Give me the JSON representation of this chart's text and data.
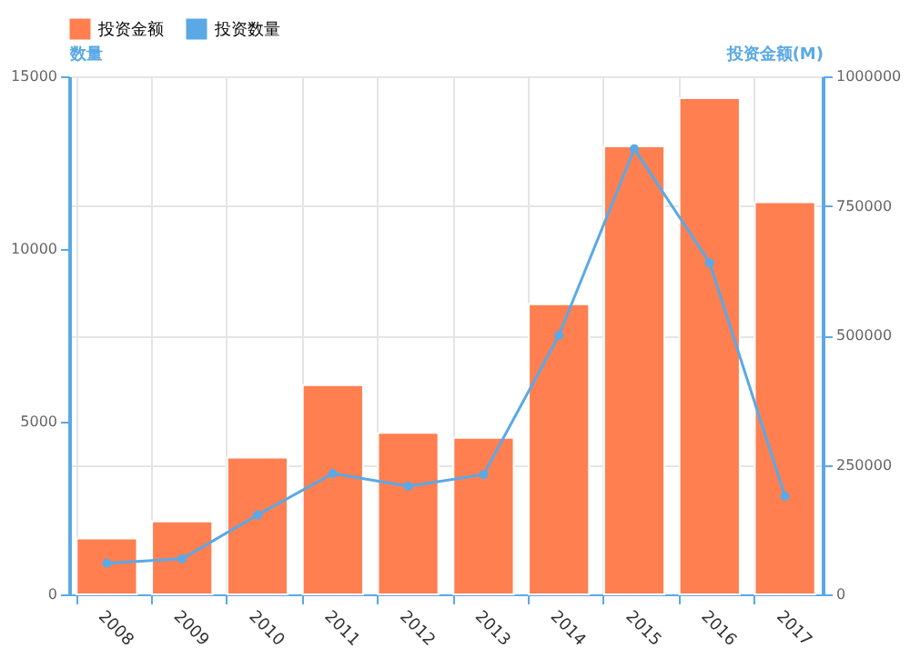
{
  "chart_data": {
    "type": "bar",
    "categories": [
      "2008",
      "2009",
      "2010",
      "2011",
      "2012",
      "2013",
      "2014",
      "2015",
      "2016",
      "2017"
    ],
    "series": [
      {
        "name": "投资金额",
        "axis": "y2",
        "color": "#ff7f50",
        "values": [
          108000,
          141000,
          264000,
          404000,
          312000,
          302000,
          560000,
          865000,
          958000,
          757000
        ]
      },
      {
        "name": "投资数量",
        "type": "line",
        "color": "#5aa9e6",
        "marker": "circle",
        "values": [
          900,
          1030,
          2300,
          3500,
          3130,
          3470,
          7500,
          12900,
          9600,
          2840
        ]
      }
    ],
    "ylabel": "数量",
    "y2label": "投资金额(M)",
    "ylim": [
      0,
      15000
    ],
    "yticks": [
      0,
      5000,
      10000,
      15000
    ],
    "y2lim": [
      0,
      1000000
    ],
    "y2ticks": [
      0,
      250000,
      500000,
      750000,
      1000000
    ],
    "grid": true,
    "legend": "top"
  }
}
